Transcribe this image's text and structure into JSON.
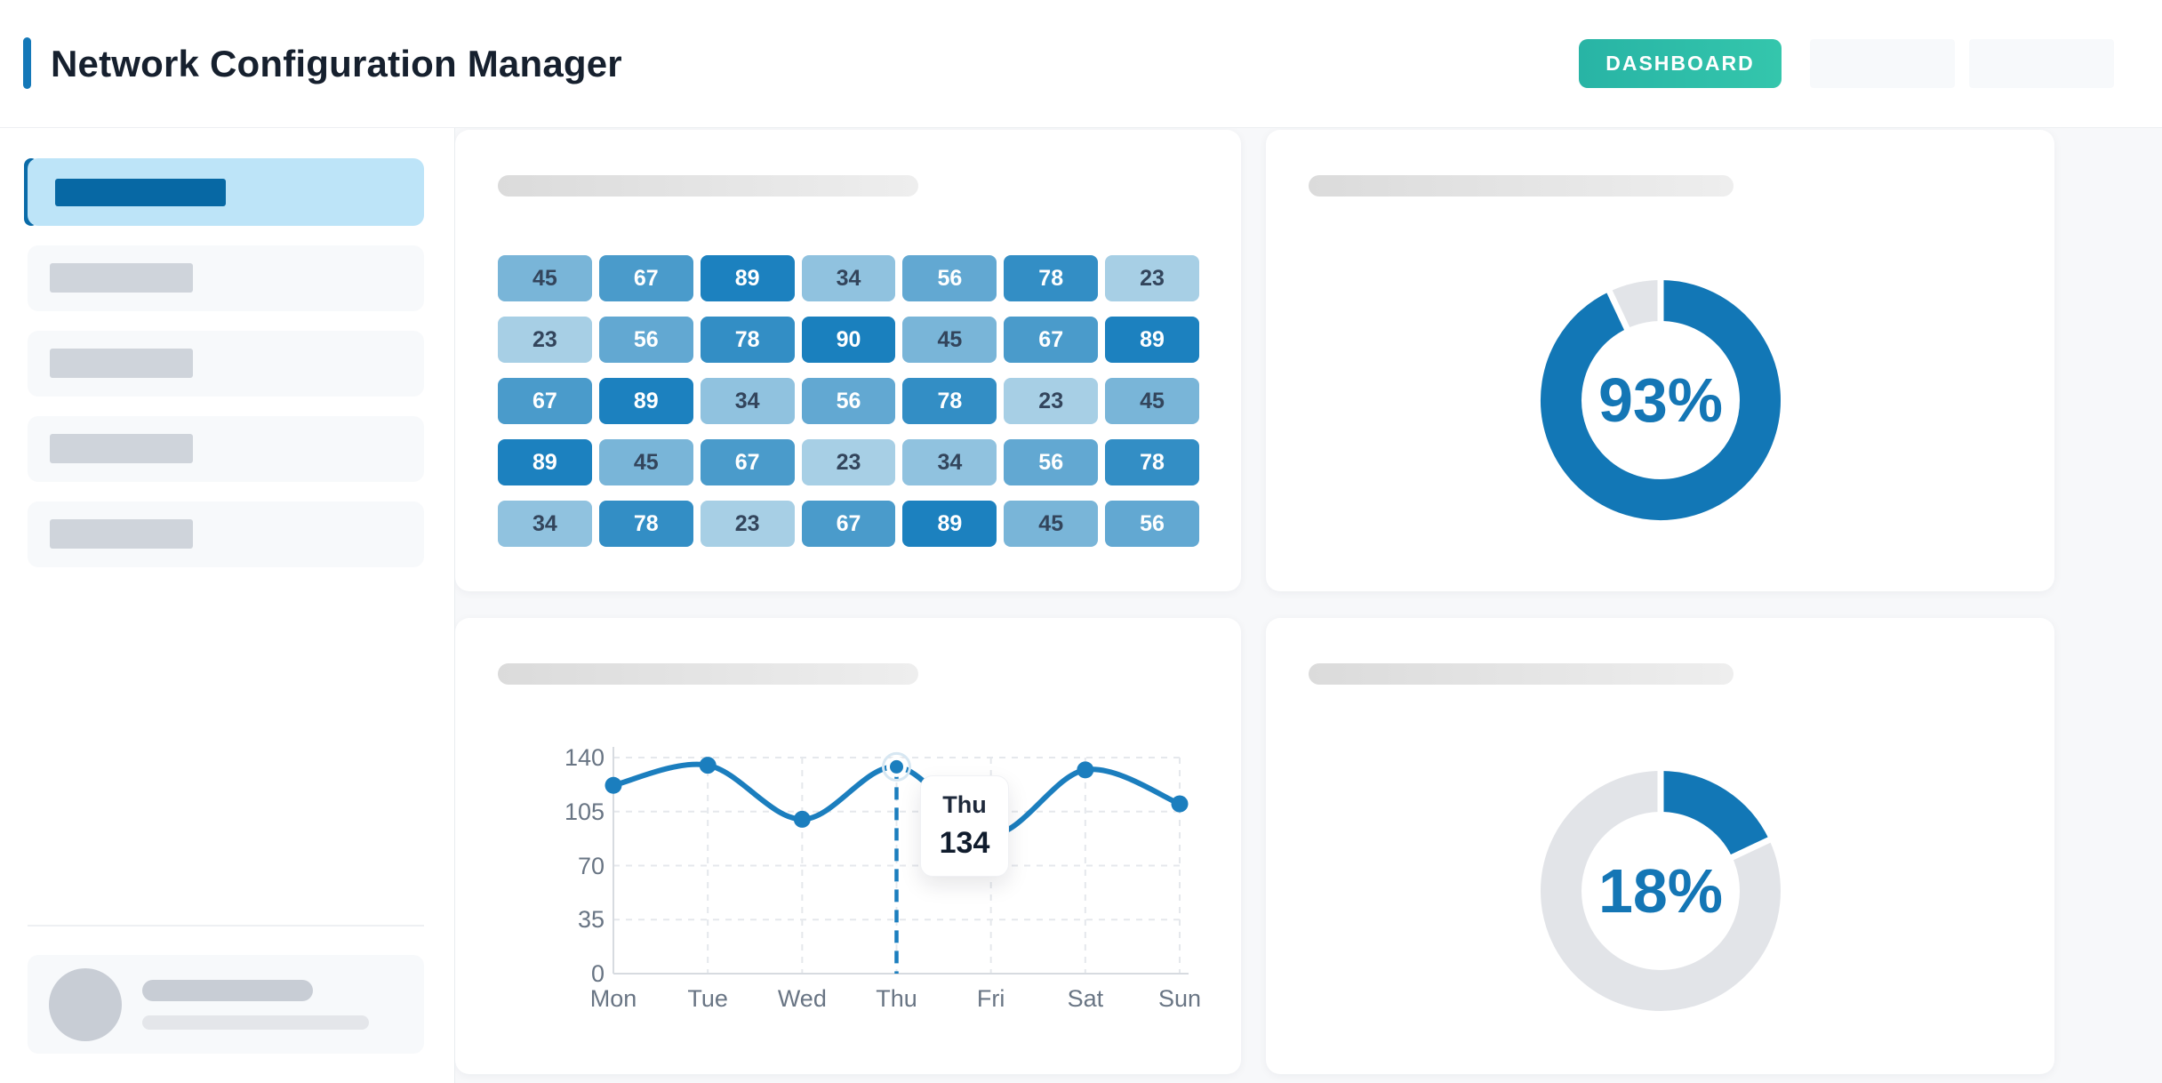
{
  "app": {
    "title": "Network Configuration Manager",
    "nav": {
      "dashboard_label": "DASHBOARD"
    }
  },
  "colors": {
    "accent_blue": "#1478b8",
    "teal_button_start": "#28b4a5",
    "teal_button_end": "#34c6ac",
    "donut_blue": "#1277b6",
    "donut_gray": "#e2e4e8",
    "percent_text": "#1476b5",
    "line_blue": "#1b7ebe",
    "heat_low": "#a7cfe5",
    "heat_high": "#1a80be",
    "heat_dark_text": "#33455c",
    "sidebar_active_bg": "#bde4f8",
    "sidebar_active_bar": "#0768a4"
  },
  "chart_data": [
    {
      "type": "heatmap",
      "rows": [
        [
          45,
          67,
          89,
          34,
          56,
          78,
          23
        ],
        [
          23,
          56,
          78,
          90,
          45,
          67,
          89
        ],
        [
          67,
          89,
          34,
          56,
          78,
          23,
          45
        ],
        [
          89,
          45,
          67,
          23,
          34,
          56,
          78
        ],
        [
          34,
          78,
          23,
          67,
          89,
          45,
          56
        ]
      ],
      "value_range": [
        23,
        90
      ],
      "light_text_min": 56
    },
    {
      "type": "donut",
      "value": 93,
      "label": "93%"
    },
    {
      "type": "line",
      "x": [
        "Mon",
        "Tue",
        "Wed",
        "Thu",
        "Fri",
        "Sat",
        "Sun"
      ],
      "values": [
        122,
        135,
        100,
        134,
        90,
        132,
        110
      ],
      "y_ticks": [
        0,
        35,
        70,
        105,
        140
      ],
      "ylim": [
        0,
        140
      ],
      "grid": true,
      "highlight_index": 3,
      "tooltip": {
        "day": "Thu",
        "value": "134"
      }
    },
    {
      "type": "donut",
      "value": 18,
      "label": "18%"
    }
  ]
}
